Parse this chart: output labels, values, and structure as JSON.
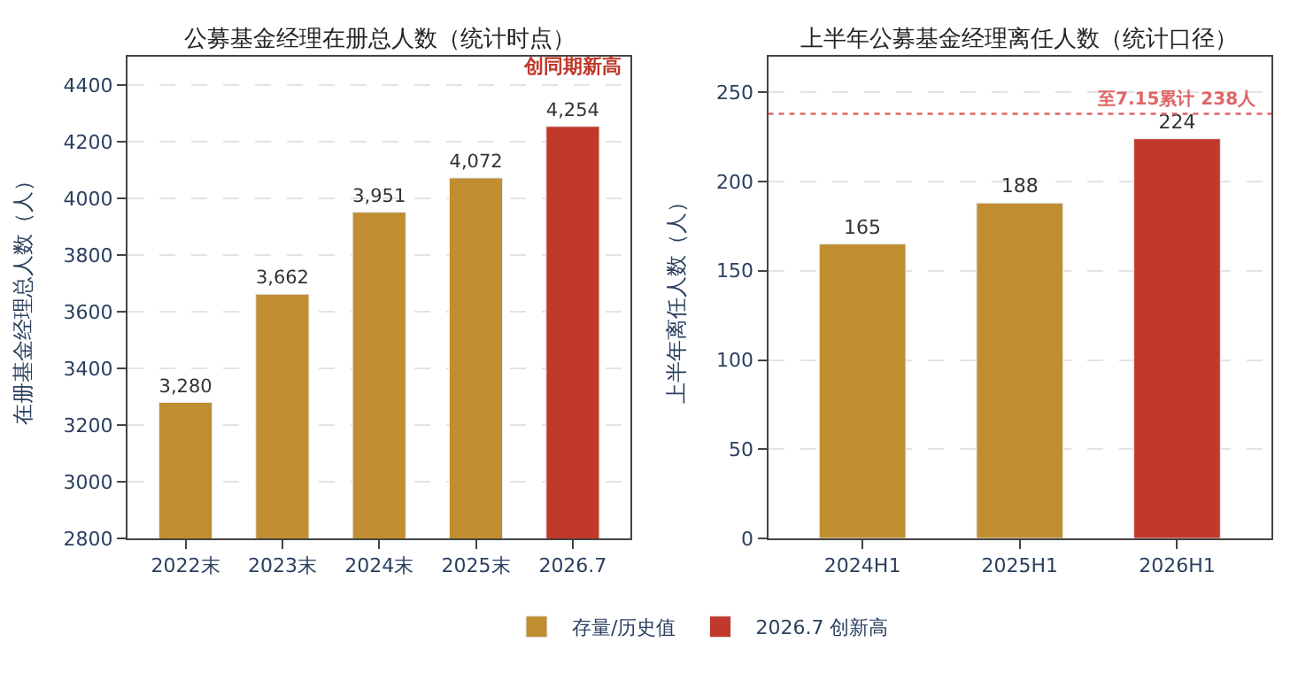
{
  "chart_data": [
    {
      "type": "bar",
      "title": "公募基金经理在册总人数（统计时点）",
      "ylabel": "在册基金经理总人数（人）",
      "categories": [
        "2022末",
        "2023末",
        "2024末",
        "2025末",
        "2026.7"
      ],
      "series": [
        {
          "name": "存量/历史值",
          "color": "#c08e30",
          "values": [
            3280,
            3662,
            3951,
            4072,
            null
          ],
          "value_labels": [
            "3,280",
            "3,662",
            "3,951",
            "4,072",
            null
          ]
        },
        {
          "name": "2026.7 创新高",
          "color": "#c0392b",
          "values": [
            null,
            null,
            null,
            null,
            4254
          ],
          "value_labels": [
            null,
            null,
            null,
            null,
            "4,254"
          ]
        }
      ],
      "annotations": [
        {
          "text": "创同期新高",
          "x": "2026.7",
          "y": 4254
        }
      ],
      "ylim": [
        2800,
        4500
      ],
      "yticks": [
        2800,
        3000,
        3200,
        3400,
        3600,
        3800,
        4000,
        4200,
        4400
      ],
      "grid": "y",
      "legend": "bottom"
    },
    {
      "type": "bar",
      "title": "上半年公募基金经理离任人数（统计口径）",
      "ylabel": "上半年离任人数（人）",
      "categories": [
        "2024H1",
        "2025H1",
        "2026H1"
      ],
      "series": [
        {
          "color": "#c08e30",
          "values": [
            165,
            188,
            null
          ],
          "value_labels": [
            "165",
            "188",
            null
          ]
        },
        {
          "color": "#c0392b",
          "values": [
            null,
            null,
            224
          ],
          "value_labels": [
            null,
            null,
            "224"
          ]
        }
      ],
      "ref_lines": [
        {
          "axis": "y",
          "value": 238,
          "label": "至7.15累计 238人",
          "color": "#e06666",
          "line_style": "dotted"
        }
      ],
      "ylim": [
        0,
        270
      ],
      "yticks": [
        0,
        50,
        100,
        150,
        200,
        250
      ],
      "grid": "y"
    }
  ]
}
